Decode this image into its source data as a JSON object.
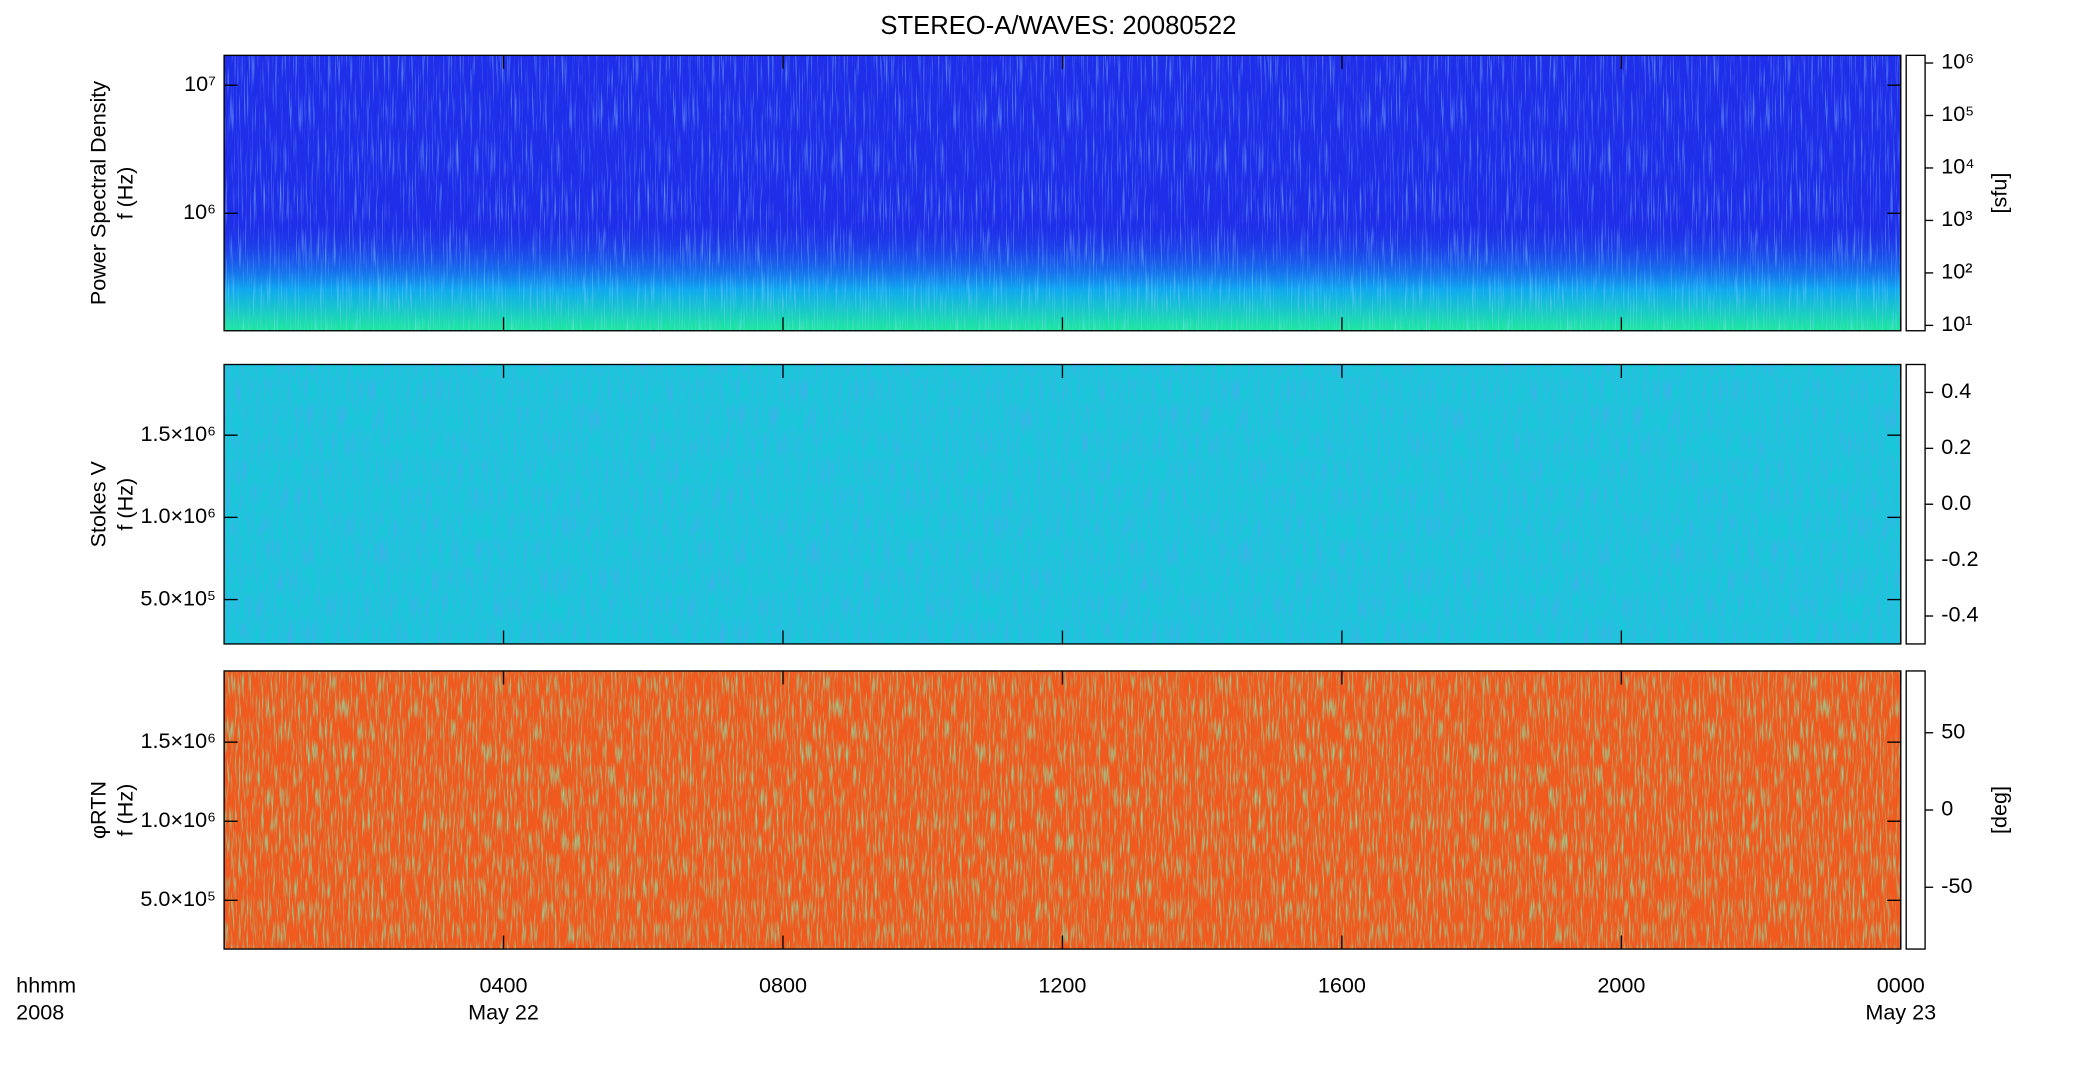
{
  "chart_data": [
    {
      "type": "heatmap",
      "title": "STEREO-A/WAVES: 20080522",
      "ylabel": [
        "Power Spectral Density",
        "f (Hz)"
      ],
      "ylog": true,
      "ylim": [
        121000,
        17100000
      ],
      "yticks": [
        {
          "value": 1000000,
          "label": "10⁶"
        },
        {
          "value": 10000000,
          "label": "10⁷"
        }
      ],
      "xlim": [
        0,
        24
      ],
      "colorbar": {
        "label": "[sfu]",
        "log": true,
        "lim": [
          7.9,
          1400000
        ],
        "ticks": [
          {
            "value": 10,
            "label": "10¹"
          },
          {
            "value": 100,
            "label": "10²"
          },
          {
            "value": 1000,
            "label": "10³"
          },
          {
            "value": 10000,
            "label": "10⁴"
          },
          {
            "value": 100000,
            "label": "10⁵"
          },
          {
            "value": 1000000,
            "label": "10⁶"
          }
        ]
      },
      "color": "#1f2ee8"
    },
    {
      "type": "heatmap",
      "ylabel": [
        "Stokes V",
        "f (Hz)"
      ],
      "ylog": false,
      "ylim": [
        230000,
        1930000
      ],
      "yticks": [
        {
          "value": 500000,
          "label": "5.0×10⁵"
        },
        {
          "value": 1000000,
          "label": "1.0×10⁶"
        },
        {
          "value": 1500000,
          "label": "1.5×10⁶"
        }
      ],
      "xlim": [
        0,
        24
      ],
      "colorbar": {
        "log": false,
        "lim": [
          -0.5,
          0.5
        ],
        "ticks": [
          -0.4,
          -0.2,
          {
            "value": 0,
            "label": "0.0"
          },
          0.2,
          0.4
        ]
      },
      "color": "#19c8d8"
    },
    {
      "type": "heatmap",
      "ylabel": [
        "φRTN",
        "f (Hz)"
      ],
      "ylog": false,
      "ylim": [
        192000,
        1950000
      ],
      "yticks": [
        {
          "value": 500000,
          "label": "5.0×10⁵"
        },
        {
          "value": 1000000,
          "label": "1.0×10⁶"
        },
        {
          "value": 1500000,
          "label": "1.5×10⁶"
        }
      ],
      "xlim": [
        0,
        24
      ],
      "xlabel": [
        "hhmm",
        "2008"
      ],
      "xticks": [
        {
          "value": 4,
          "label": "0400"
        },
        {
          "value": 8,
          "label": "0800"
        },
        {
          "value": 12,
          "label": "1200"
        },
        {
          "value": 16,
          "label": "1600"
        },
        {
          "value": 20,
          "label": "2000"
        },
        {
          "value": 24,
          "label": "0000"
        }
      ],
      "xdates": [
        {
          "value": 4,
          "label": "May 22"
        },
        {
          "value": 24,
          "label": "May 23"
        }
      ],
      "colorbar": {
        "label": "[deg]",
        "log": false,
        "lim": [
          -90,
          90
        ],
        "ticks": [
          -50,
          0,
          50
        ]
      },
      "color": "#f05a1e"
    }
  ]
}
